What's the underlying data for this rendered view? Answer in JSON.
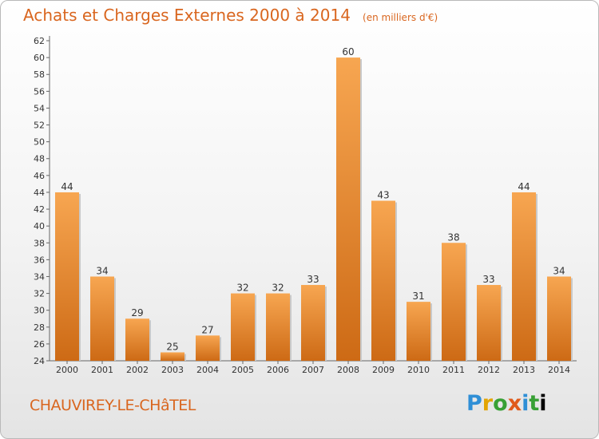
{
  "title": "Achats et Charges Externes 2000 à 2014",
  "unit": "(en milliers d'€)",
  "town": "CHAUVIREY-LE-CHâTEL",
  "logo": [
    "P",
    "r",
    "o",
    "x",
    "i",
    "t",
    "i"
  ],
  "colors": {
    "accent": "#d9661f",
    "bar_light": "#f7a651",
    "bar_dark": "#cd6a15"
  },
  "chart_data": {
    "type": "bar",
    "categories": [
      "2000",
      "2001",
      "2002",
      "2003",
      "2004",
      "2005",
      "2006",
      "2007",
      "2008",
      "2009",
      "2010",
      "2011",
      "2012",
      "2013",
      "2014"
    ],
    "values": [
      44,
      34,
      29,
      25,
      27,
      32,
      32,
      33,
      60,
      43,
      31,
      38,
      33,
      44,
      34
    ],
    "yticks": [
      24,
      26,
      28,
      30,
      32,
      34,
      36,
      38,
      40,
      42,
      44,
      46,
      48,
      50,
      52,
      54,
      56,
      58,
      60,
      62
    ],
    "ylim": [
      24,
      62
    ],
    "grid": false,
    "legend": "none"
  }
}
